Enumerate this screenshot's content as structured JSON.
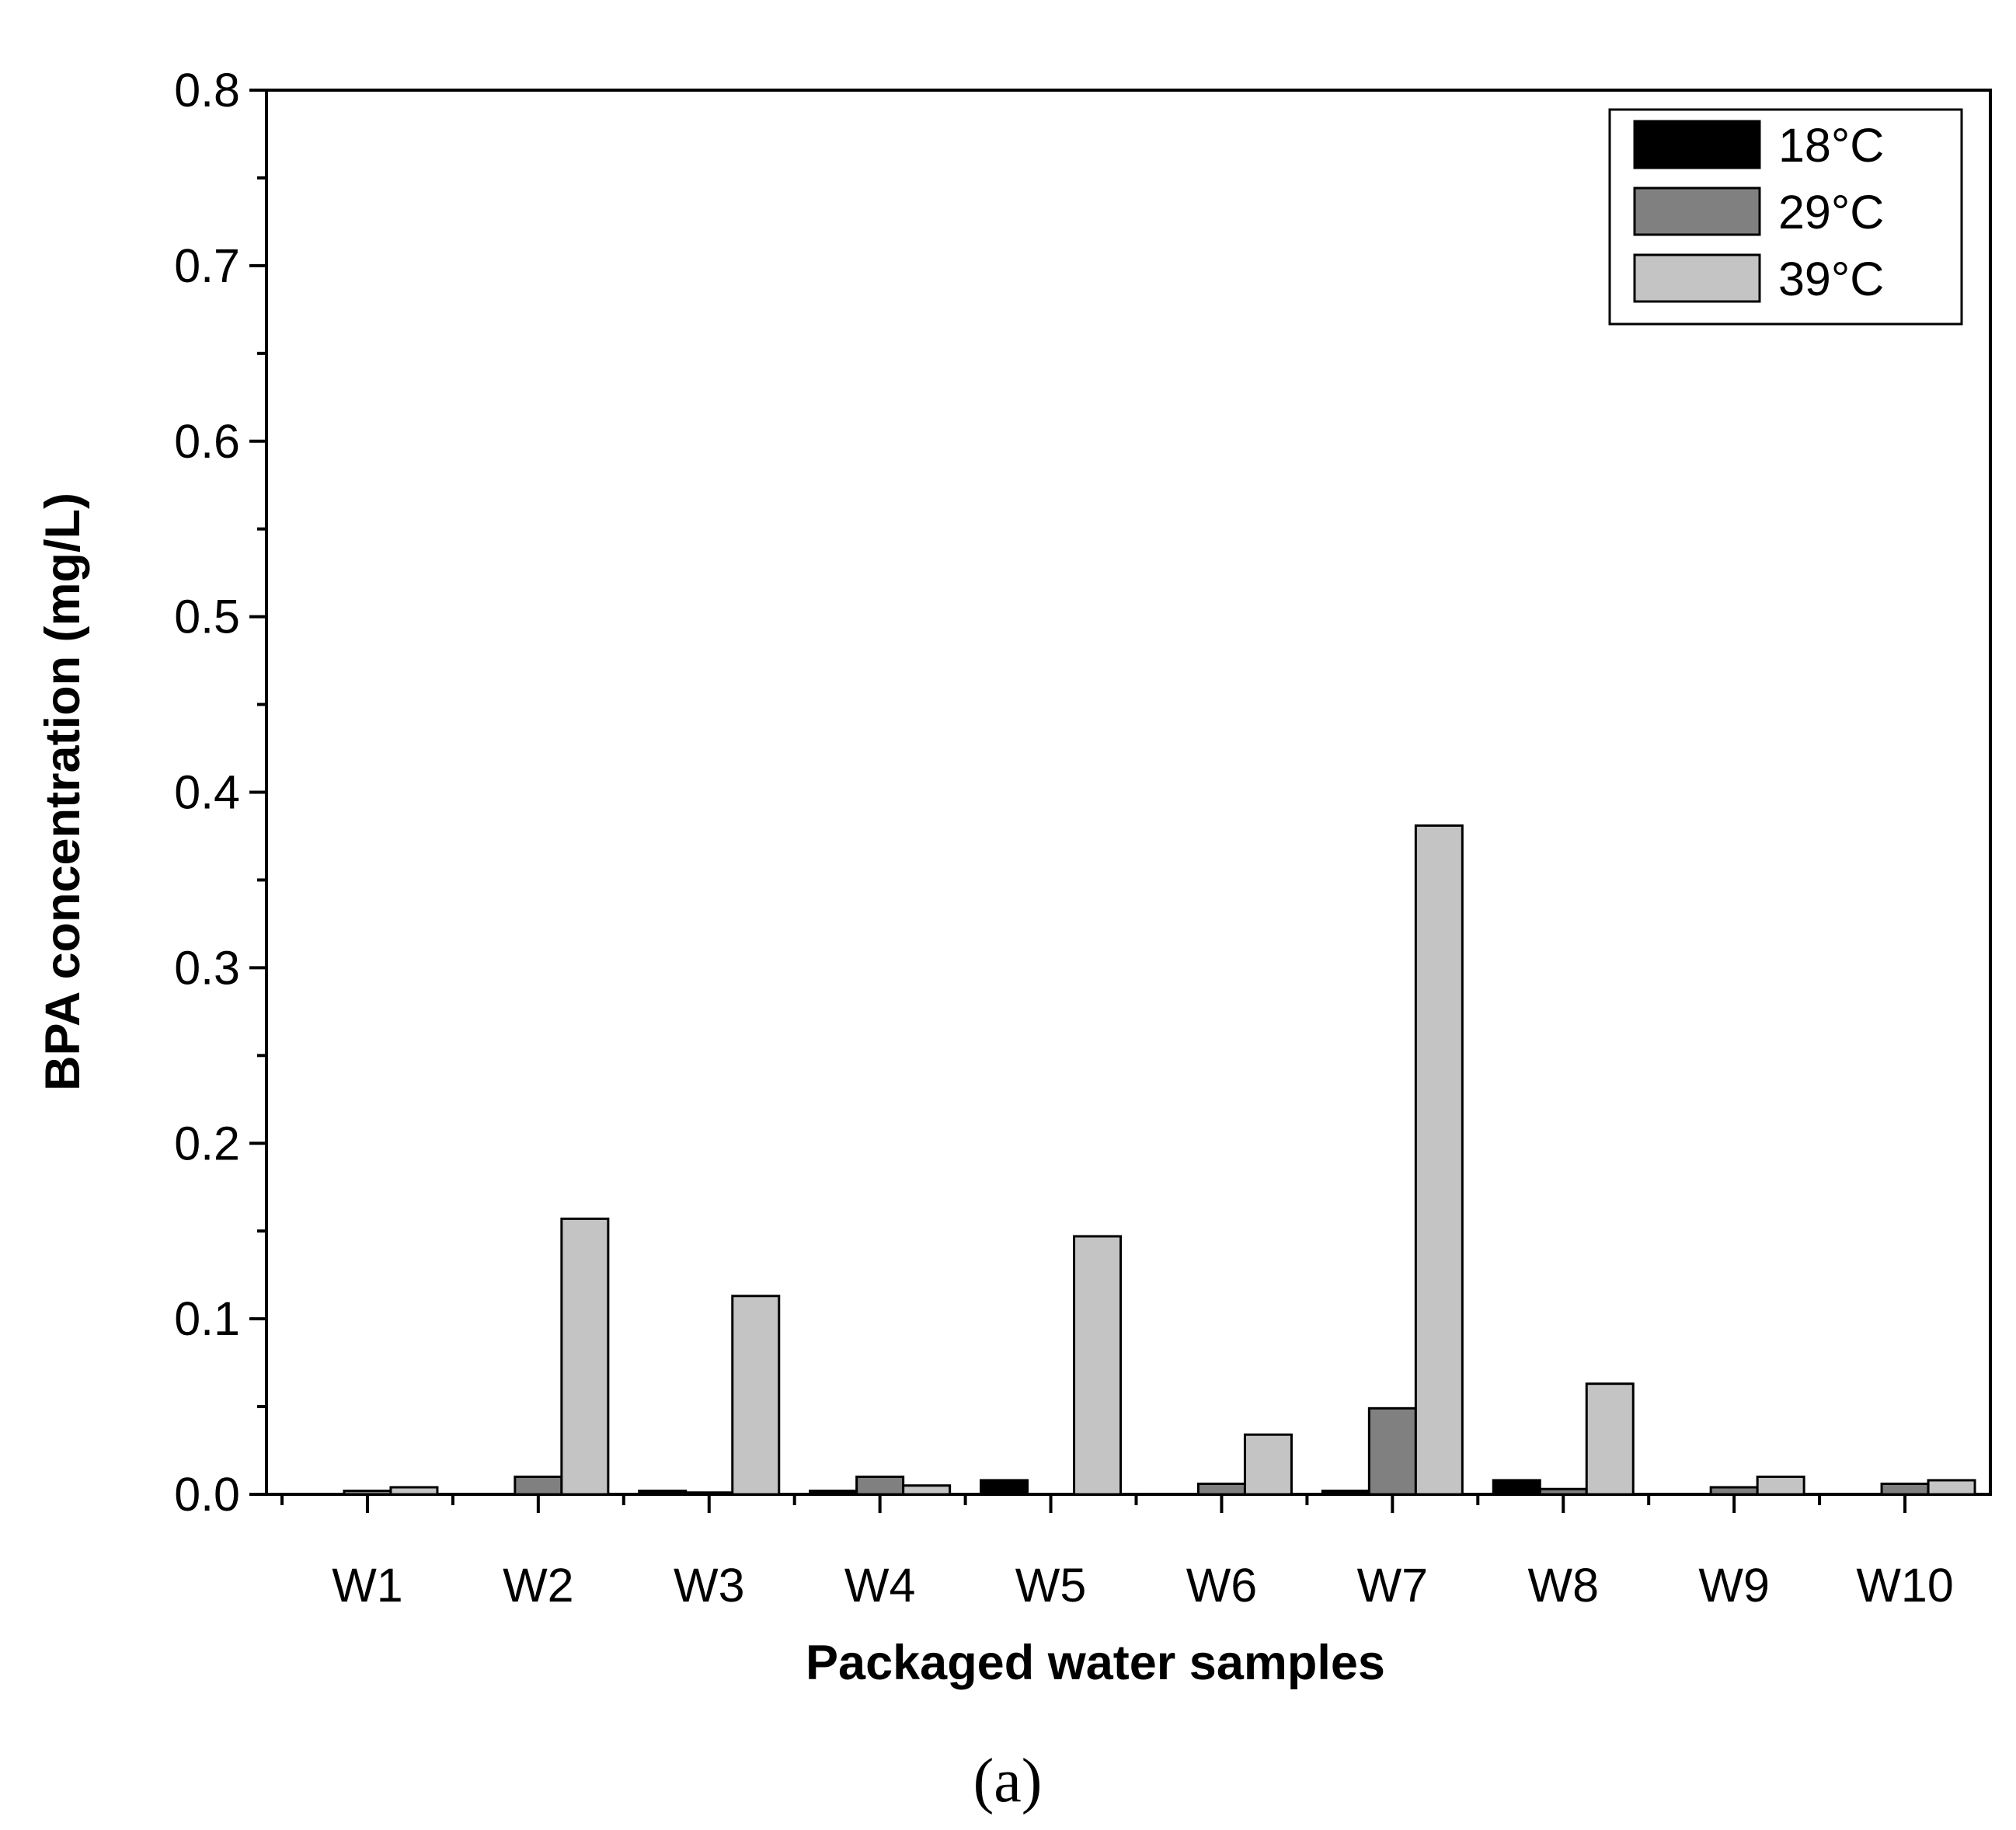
{
  "chart_data": {
    "type": "bar",
    "xlabel": "Packaged water samples",
    "ylabel": "BPA concentration (mg/L)",
    "ylim": [
      0,
      0.8
    ],
    "yticks": [
      "0.0",
      "0.1",
      "0.2",
      "0.3",
      "0.4",
      "0.5",
      "0.6",
      "0.7",
      "0.8"
    ],
    "categories": [
      "W1",
      "W2",
      "W3",
      "W4",
      "W5",
      "W6",
      "W7",
      "W8",
      "W9",
      "W10"
    ],
    "series": [
      {
        "name": "18°C",
        "color": "#000000",
        "values": [
          0.0,
          0.0,
          0.002,
          0.002,
          0.008,
          0.0,
          0.002,
          0.008,
          0.0,
          0.0
        ]
      },
      {
        "name": "29°C",
        "color": "#808080",
        "values": [
          0.002,
          0.01,
          0.001,
          0.01,
          0.0,
          0.006,
          0.049,
          0.003,
          0.004,
          0.006
        ]
      },
      {
        "name": "39°C",
        "color": "#c4c4c4",
        "values": [
          0.004,
          0.157,
          0.113,
          0.005,
          0.147,
          0.034,
          0.381,
          0.063,
          0.01,
          0.008
        ]
      }
    ],
    "legend_position": "top-right",
    "grid": false
  },
  "panel_label": "(a)"
}
